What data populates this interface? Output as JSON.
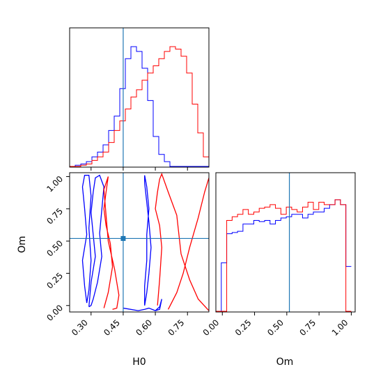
{
  "chart_data": [
    {
      "type": "histogram",
      "panel": "H0 marginal",
      "xlim": [
        0.2,
        0.85
      ],
      "truth": 0.45,
      "colors": {
        "series_a": "#0000ff",
        "series_b": "#ff0000",
        "truth": "#1f77b4"
      },
      "bin_edges": [
        0.2,
        0.226,
        0.252,
        0.278,
        0.304,
        0.33,
        0.356,
        0.382,
        0.408,
        0.434,
        0.46,
        0.486,
        0.512,
        0.538,
        0.564,
        0.59,
        0.616,
        0.642,
        0.668,
        0.694,
        0.72,
        0.746,
        0.772,
        0.798,
        0.824,
        0.85
      ],
      "series": [
        {
          "values": [
            0,
            1,
            2,
            4,
            8,
            12,
            18,
            30,
            42,
            65,
            90,
            100,
            96,
            82,
            55,
            25,
            10,
            4,
            0,
            0,
            0,
            0,
            0,
            0,
            0
          ]
        },
        {
          "values": [
            0,
            0,
            1,
            2,
            5,
            8,
            12,
            20,
            30,
            38,
            48,
            58,
            64,
            72,
            78,
            84,
            90,
            96,
            100,
            98,
            92,
            78,
            52,
            28,
            8
          ]
        }
      ]
    },
    {
      "type": "contour",
      "panel": "H0 vs Om",
      "xlabel": "H0",
      "ylabel": "Om",
      "xlim": [
        0.2,
        0.85
      ],
      "ylim": [
        -0.05,
        1.03
      ],
      "xticks": [
        "0.30",
        "0.45",
        "0.60",
        "0.75"
      ],
      "yticks": [
        "0.00",
        "0.25",
        "0.50",
        "0.75",
        "1.00"
      ],
      "truth": {
        "x": 0.45,
        "y": 0.52
      },
      "series": [
        {
          "contours": [
            {
              "x": [
                0.29,
                0.3,
                0.32,
                0.31,
                0.3,
                0.31,
                0.32,
                0.34,
                0.36,
                0.35,
                0.34,
                0.35,
                0.33,
                0.31,
                0.3,
                0.29
              ],
              "y": [
                -0.01,
                0.18,
                0.38,
                0.55,
                0.72,
                0.88,
                0.99,
                1.01,
                0.92,
                0.74,
                0.56,
                0.38,
                0.18,
                0.05,
                0.0,
                -0.01
              ]
            },
            {
              "x": [
                0.28,
                0.27,
                0.26,
                0.28,
                0.27,
                0.26,
                0.27,
                0.29,
                0.3,
                0.29,
                0.3,
                0.29,
                0.28
              ],
              "y": [
                0.02,
                0.15,
                0.35,
                0.55,
                0.75,
                0.92,
                1.01,
                1.01,
                0.85,
                0.6,
                0.35,
                0.12,
                0.02
              ]
            },
            {
              "x": [
                0.55,
                0.56,
                0.57,
                0.58,
                0.57,
                0.56,
                0.55,
                0.55,
                0.56,
                0.57,
                0.56,
                0.56,
                0.55,
                0.55
              ],
              "y": [
                0.0,
                0.1,
                0.25,
                0.45,
                0.65,
                0.8,
                0.95,
                1.01,
                0.92,
                0.75,
                0.55,
                0.35,
                0.15,
                0.0
              ]
            },
            {
              "x": [
                0.45,
                0.52,
                0.55,
                0.57,
                0.6,
                0.62,
                0.63,
                0.62,
                0.6
              ],
              "y": [
                -0.02,
                -0.04,
                -0.03,
                -0.02,
                -0.04,
                -0.03,
                0.05,
                -0.01,
                -0.04
              ]
            }
          ]
        },
        {
          "contours": [
            {
              "x": [
                0.36,
                0.38,
                0.4,
                0.39,
                0.37,
                0.36,
                0.37,
                0.38,
                0.36,
                0.37,
                0.38,
                0.41,
                0.43,
                0.42,
                0.4
              ],
              "y": [
                -0.02,
                0.1,
                0.3,
                0.48,
                0.62,
                0.75,
                0.88,
                1.0,
                0.9,
                0.7,
                0.5,
                0.28,
                0.08,
                -0.02,
                -0.03
              ]
            },
            {
              "x": [
                0.61,
                0.62,
                0.63,
                0.62,
                0.6,
                0.61,
                0.62,
                0.63,
                0.66,
                0.7,
                0.72,
                0.76,
                0.8,
                0.85
              ],
              "y": [
                0.0,
                0.2,
                0.45,
                0.62,
                0.75,
                0.88,
                0.98,
                1.02,
                0.88,
                0.7,
                0.4,
                0.2,
                0.05,
                -0.04
              ]
            },
            {
              "x": [
                0.66,
                0.7,
                0.73,
                0.76,
                0.8,
                0.83,
                0.85
              ],
              "y": [
                -0.03,
                0.1,
                0.25,
                0.45,
                0.68,
                0.88,
                0.99
              ]
            }
          ]
        }
      ]
    },
    {
      "type": "histogram",
      "panel": "Om marginal",
      "xlabel": "Om",
      "xlim": [
        -0.05,
        1.03
      ],
      "xticks": [
        "0.00",
        "0.25",
        "0.50",
        "0.75",
        "1.00"
      ],
      "truth": 0.52,
      "bin_edges": [
        -0.05,
        -0.008,
        0.034,
        0.076,
        0.118,
        0.16,
        0.202,
        0.244,
        0.286,
        0.328,
        0.37,
        0.412,
        0.454,
        0.496,
        0.538,
        0.58,
        0.622,
        0.664,
        0.706,
        0.748,
        0.79,
        0.832,
        0.874,
        0.916,
        0.958,
        1.0
      ],
      "series": [
        {
          "values": [
            0,
            40,
            64,
            65,
            66,
            72,
            72,
            75,
            74,
            75,
            72,
            75,
            77,
            78,
            80,
            80,
            77,
            80,
            82,
            82,
            85,
            88,
            92,
            88,
            37
          ]
        },
        {
          "values": [
            0,
            0,
            75,
            78,
            80,
            84,
            80,
            82,
            85,
            86,
            88,
            85,
            80,
            86,
            84,
            82,
            86,
            90,
            84,
            90,
            88,
            88,
            92,
            88,
            0
          ]
        }
      ]
    }
  ]
}
